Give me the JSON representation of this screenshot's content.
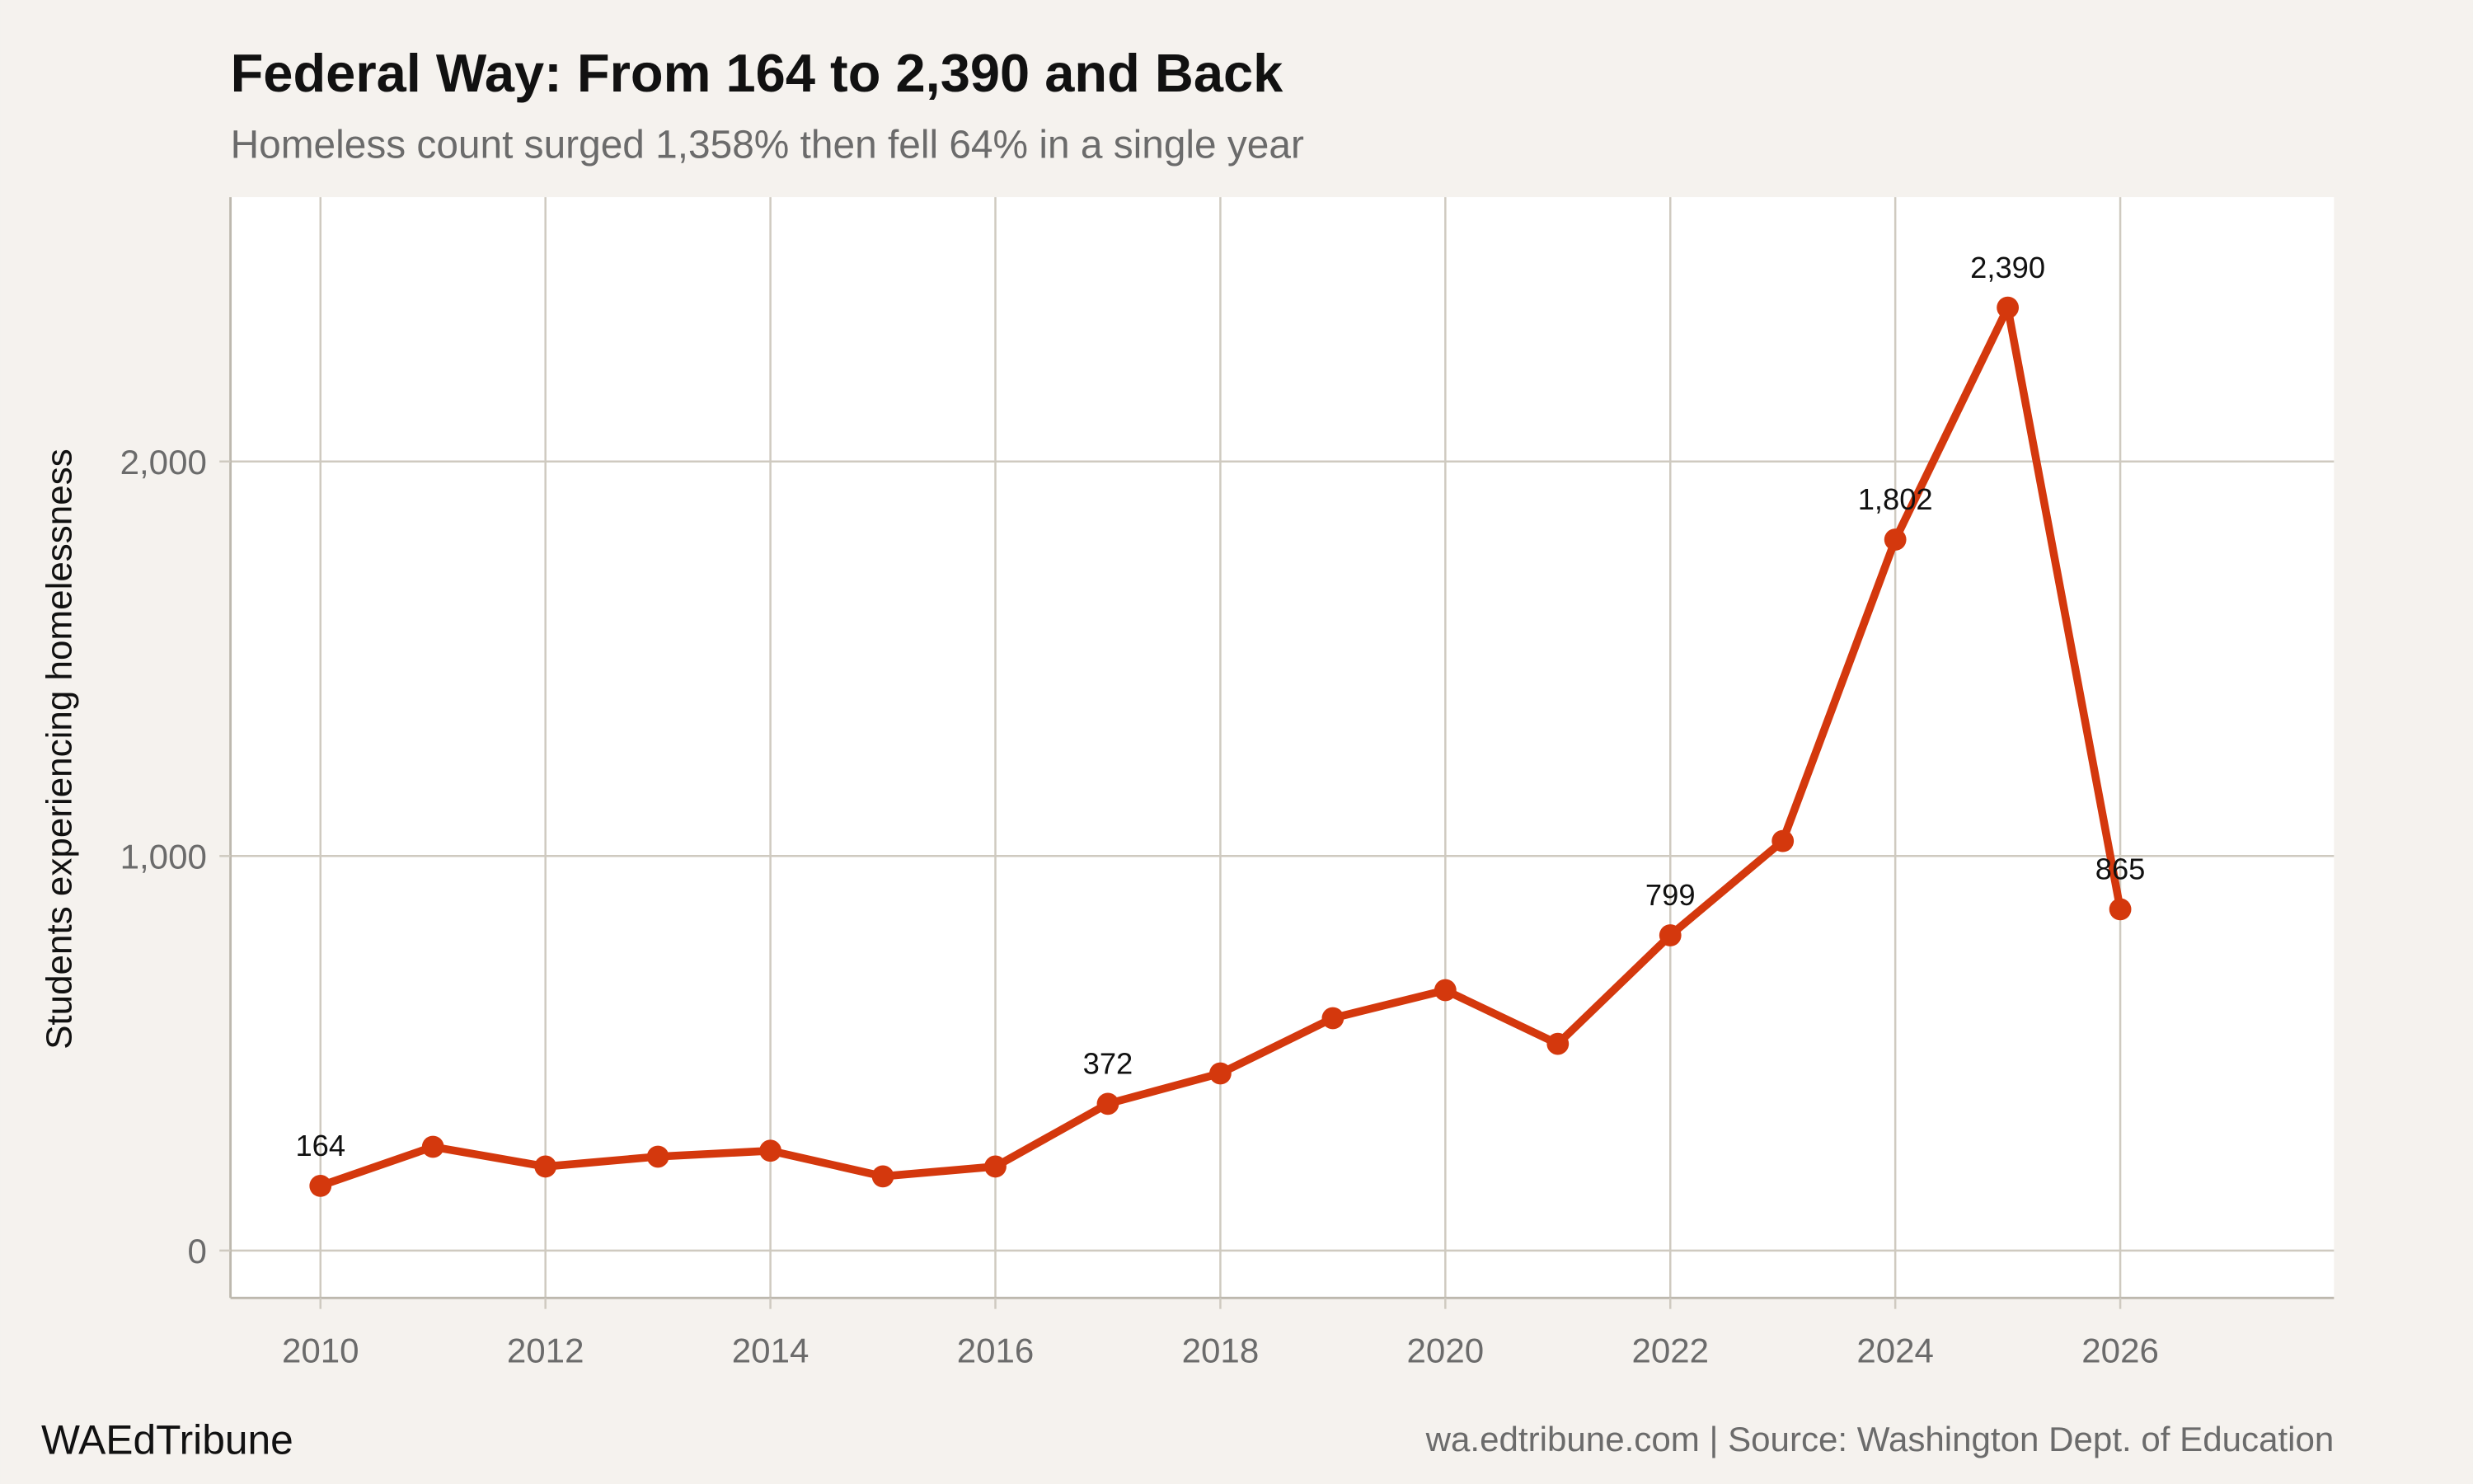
{
  "chart_data": {
    "type": "line",
    "title": "Federal Way: From 164 to 2,390 and Back",
    "subtitle": "Homeless count surged 1,358% then fell 64% in a single year",
    "xlabel": "",
    "ylabel": "Students experiencing homelessness",
    "x": [
      2010,
      2011,
      2012,
      2013,
      2014,
      2015,
      2016,
      2017,
      2018,
      2019,
      2020,
      2021,
      2022,
      2023,
      2024,
      2025,
      2026
    ],
    "values": [
      164,
      263,
      213,
      238,
      253,
      188,
      213,
      372,
      449,
      589,
      660,
      524,
      799,
      1038,
      1802,
      2390,
      865
    ],
    "data_labels": [
      {
        "x": 2010,
        "text": "164"
      },
      {
        "x": 2017,
        "text": "372"
      },
      {
        "x": 2022,
        "text": "799"
      },
      {
        "x": 2024,
        "text": "1,802"
      },
      {
        "x": 2025,
        "text": "2,390"
      },
      {
        "x": 2026,
        "text": "865"
      }
    ],
    "xlim": [
      2009.2,
      2027.9
    ],
    "ylim": [
      -120,
      2670
    ],
    "x_ticks": [
      2010,
      2012,
      2014,
      2016,
      2018,
      2020,
      2022,
      2024,
      2026
    ],
    "x_tick_labels": [
      "2010",
      "2012",
      "2014",
      "2016",
      "2018",
      "2020",
      "2022",
      "2024",
      "2026"
    ],
    "y_ticks": [
      0,
      1000,
      2000
    ],
    "y_tick_labels": [
      "0",
      "1,000",
      "2,000"
    ],
    "grid": true,
    "line_color": "#d4380d",
    "background_color": "#f5f2ee",
    "panel_color": "#ffffff",
    "grid_color": "#cfcac0"
  },
  "footer": {
    "brand": "WAEdTribune",
    "source": "wa.edtribune.com | Source: Washington Dept. of Education"
  }
}
